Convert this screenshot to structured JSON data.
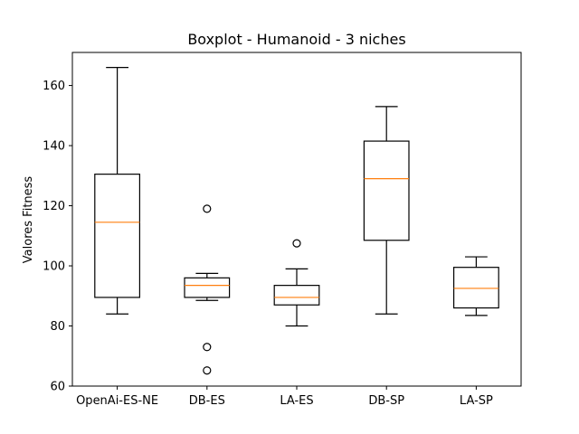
{
  "chart_data": {
    "type": "boxplot",
    "title": "Boxplot - Humanoid - 3 niches",
    "xlabel": "",
    "ylabel": "Valores Fitness",
    "ylim": [
      60,
      171
    ],
    "yticks": [
      60,
      80,
      100,
      120,
      140,
      160
    ],
    "grid": false,
    "categories": [
      "OpenAi-ES-NE",
      "DB-ES",
      "LA-ES",
      "DB-SP",
      "LA-SP"
    ],
    "boxes": [
      {
        "category": "OpenAi-ES-NE",
        "whisker_low": 84,
        "q1": 89.5,
        "median": 114.5,
        "q3": 130.5,
        "whisker_high": 166,
        "outliers": []
      },
      {
        "category": "DB-ES",
        "whisker_low": 88.5,
        "q1": 89.5,
        "median": 93.5,
        "q3": 96,
        "whisker_high": 97.5,
        "outliers": [
          119,
          73,
          65.2
        ]
      },
      {
        "category": "LA-ES",
        "whisker_low": 80,
        "q1": 87,
        "median": 89.5,
        "q3": 93.5,
        "whisker_high": 99,
        "outliers": [
          107.5
        ]
      },
      {
        "category": "DB-SP",
        "whisker_low": 84,
        "q1": 108.5,
        "median": 129,
        "q3": 141.5,
        "whisker_high": 153,
        "outliers": []
      },
      {
        "category": "LA-SP",
        "whisker_low": 83.5,
        "q1": 86,
        "median": 92.5,
        "q3": 99.5,
        "whisker_high": 103,
        "outliers": []
      }
    ],
    "colors": {
      "box": "#000000",
      "median": "#ff7f0e",
      "whisker": "#000000",
      "outlier": "#000000"
    }
  }
}
